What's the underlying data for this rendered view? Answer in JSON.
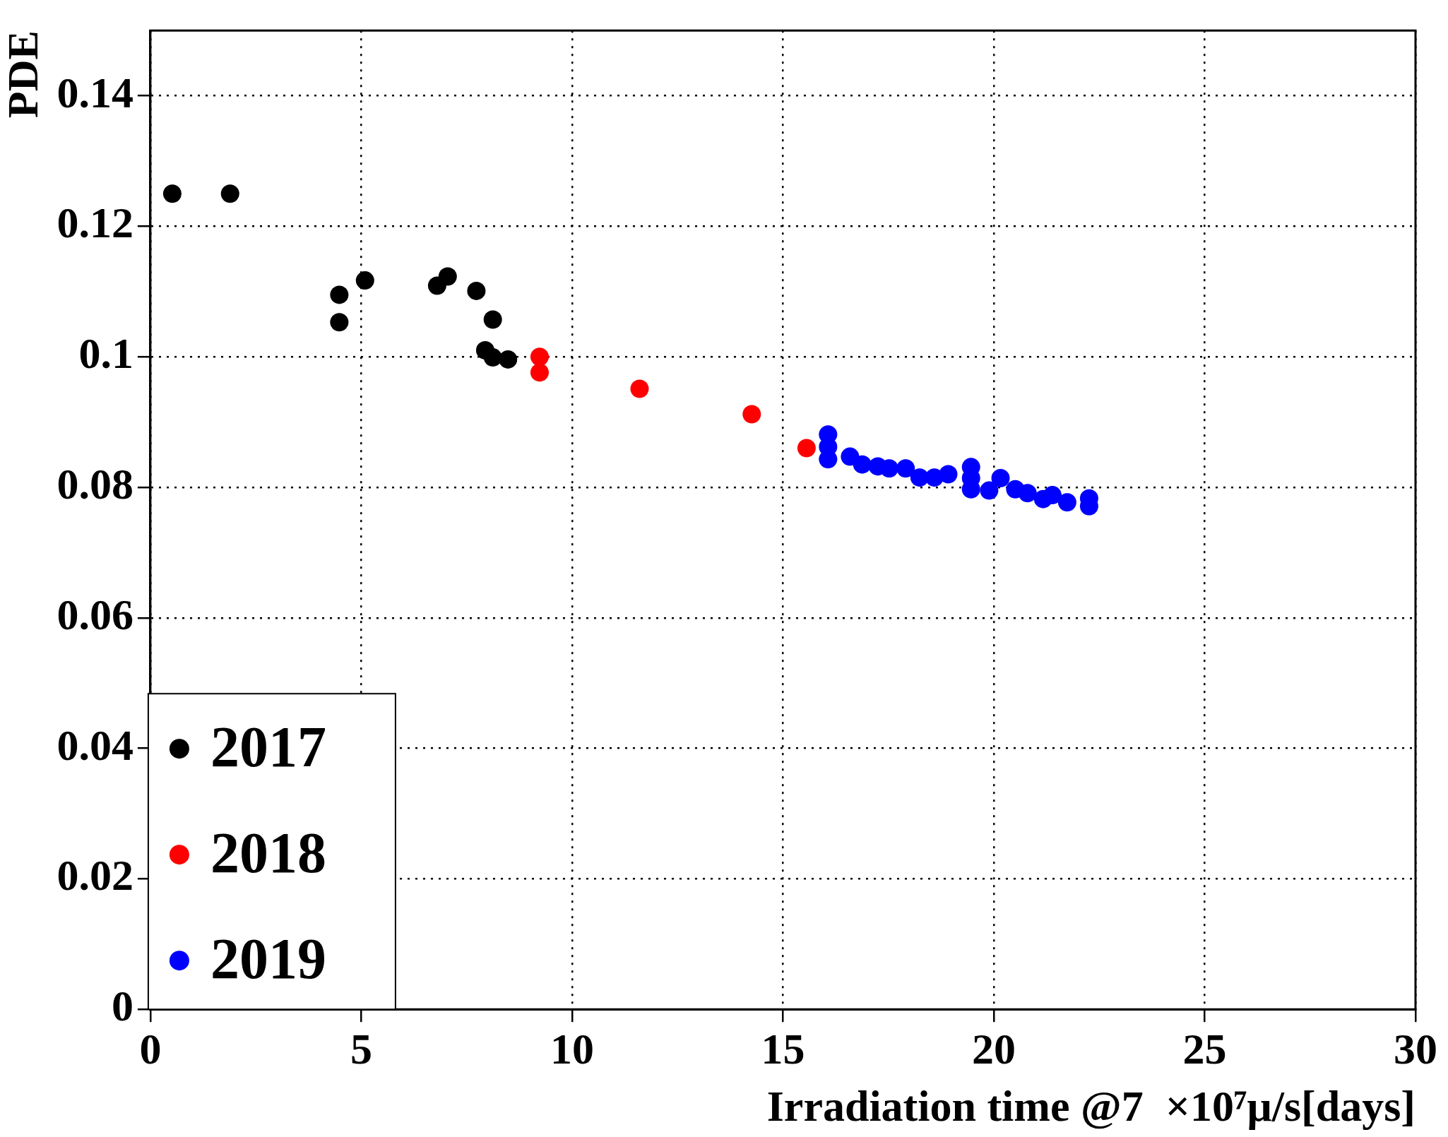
{
  "chart_data": {
    "type": "scatter",
    "xlabel": "Irradiation time @7  ×10⁷μ/s[days]",
    "ylabel": "PDE",
    "xlim": [
      0,
      30
    ],
    "xticks": [
      0,
      5,
      10,
      15,
      20,
      25,
      30
    ],
    "ylim": [
      0,
      0.15
    ],
    "yticks": [
      0,
      0.02,
      0.04,
      0.06,
      0.08,
      0.1,
      0.12,
      0.14
    ],
    "grid": true,
    "legend": "bottom left",
    "marker": "circle",
    "series": [
      {
        "name": "2017",
        "color": "#000000",
        "x": [
          0.52,
          1.89,
          4.48,
          4.48,
          5.09,
          6.8,
          7.05,
          7.73,
          8.12,
          7.94,
          8.12,
          8.48
        ],
        "values": [
          0.125,
          0.125,
          0.1095,
          0.1053,
          0.1117,
          0.1109,
          0.1123,
          0.1101,
          0.1057,
          0.101,
          0.0999,
          0.0996
        ]
      },
      {
        "name": "2018",
        "color": "#ff0000",
        "x": [
          9.23,
          9.23,
          11.6,
          14.26,
          15.56
        ],
        "values": [
          0.1,
          0.0976,
          0.0951,
          0.0912,
          0.086
        ]
      },
      {
        "name": "2019",
        "color": "#0000ff",
        "x": [
          16.07,
          16.07,
          16.07,
          16.59,
          16.88,
          17.25,
          17.52,
          17.91,
          18.24,
          18.59,
          18.92,
          19.46,
          19.46,
          19.46,
          19.89,
          20.16,
          20.51,
          20.8,
          21.17,
          21.39,
          21.74,
          22.26,
          22.26
        ],
        "values": [
          0.0881,
          0.0862,
          0.0843,
          0.0847,
          0.0835,
          0.0832,
          0.0829,
          0.0829,
          0.0815,
          0.0815,
          0.082,
          0.0831,
          0.0814,
          0.0797,
          0.0795,
          0.0814,
          0.0797,
          0.0791,
          0.0782,
          0.0788,
          0.0777,
          0.0783,
          0.0771
        ]
      }
    ]
  }
}
